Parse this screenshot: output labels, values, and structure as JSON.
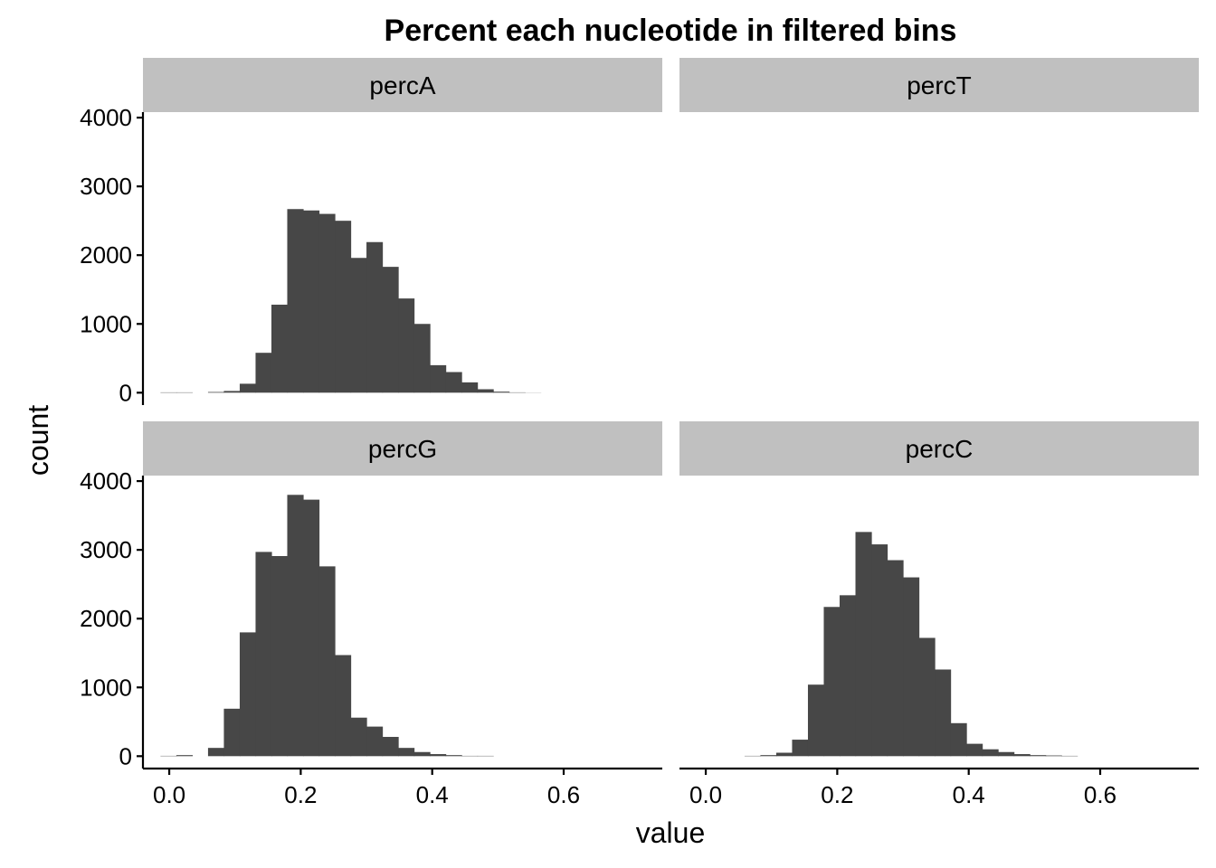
{
  "chart_data": {
    "type": "bar",
    "title": "Percent each nucleotide in filtered bins",
    "xlabel": "value",
    "ylabel": "count",
    "xlim": [
      -0.04,
      0.75
    ],
    "ylim": [
      -180,
      4080
    ],
    "xticks": [
      0.0,
      0.2,
      0.4,
      0.6
    ],
    "xtick_labels": [
      "0.0",
      "0.2",
      "0.4",
      "0.6"
    ],
    "yticks": [
      0,
      1000,
      2000,
      3000,
      4000
    ],
    "ytick_labels": [
      "0",
      "1000",
      "2000",
      "3000",
      "4000"
    ],
    "bin_width": 0.0241,
    "grid": false,
    "legend": "none",
    "bar_color": "#474747",
    "strip_color": "#c0c0c0",
    "panels": [
      {
        "label": "percA",
        "bin_start": -0.0133,
        "values": [
          5,
          5,
          0,
          10,
          25,
          130,
          580,
          1280,
          2670,
          2650,
          2600,
          2500,
          1960,
          2190,
          1830,
          1370,
          1000,
          400,
          300,
          150,
          50,
          15,
          5,
          2,
          0,
          0,
          0,
          0,
          0,
          0
        ]
      },
      {
        "label": "percT",
        "bin_start": -0.0133,
        "values": [
          0,
          0,
          0,
          0,
          0,
          0,
          0,
          0,
          0,
          0,
          0,
          0,
          0,
          0,
          0,
          0,
          0,
          0,
          0,
          0,
          0,
          0,
          0,
          0,
          0,
          0,
          0,
          0,
          0,
          0
        ]
      },
      {
        "label": "percG",
        "bin_start": -0.0133,
        "values": [
          5,
          15,
          0,
          120,
          690,
          1800,
          2970,
          2910,
          3800,
          3730,
          2760,
          1470,
          560,
          430,
          280,
          120,
          60,
          30,
          15,
          5,
          5,
          0,
          0,
          0,
          0,
          0,
          0,
          0,
          0,
          0
        ]
      },
      {
        "label": "percC",
        "bin_start": -0.0133,
        "values": [
          0,
          0,
          0,
          5,
          15,
          50,
          240,
          1040,
          2170,
          2340,
          3260,
          3080,
          2850,
          2600,
          1720,
          1260,
          480,
          180,
          100,
          60,
          30,
          15,
          10,
          5,
          0,
          0,
          0,
          0,
          0,
          0
        ]
      }
    ]
  }
}
